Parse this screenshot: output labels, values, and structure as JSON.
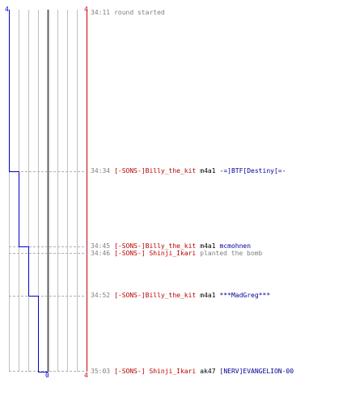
{
  "score": {
    "top_left": "4",
    "top_right": "4",
    "bottom_mid": "0",
    "bottom_right": "4"
  },
  "colors": {
    "blue_team": "#0000cc",
    "red_team": "#cc0000",
    "killer": "#bb0000",
    "victim": "#000099",
    "time": "#808080",
    "grid": "#c0c0c0"
  },
  "events": [
    {
      "type": "info",
      "time": "34:11",
      "text": "round started"
    },
    {
      "type": "kill",
      "time": "34:34",
      "killer": "[-SONS-]Billy_the_kit",
      "weapon": "m4a1",
      "victim": "-=]BTF[Destiny[=-"
    },
    {
      "type": "kill",
      "time": "34:45",
      "killer": "[-SONS-]Billy_the_kit",
      "weapon": "m4a1",
      "victim": "mcmohnen"
    },
    {
      "type": "action",
      "time": "34:46",
      "killer": "[-SONS-] Shinji_Ikari",
      "text": "planted the bomb"
    },
    {
      "type": "kill",
      "time": "34:52",
      "killer": "[-SONS-]Billy_the_kit",
      "weapon": "m4a1",
      "victim": "***MadGreg***"
    },
    {
      "type": "kill",
      "time": "35:03",
      "killer": "[-SONS-] Shinji_Ikari",
      "weapon": "ak47",
      "victim": "[NERV]EVANGELION-00"
    }
  ]
}
